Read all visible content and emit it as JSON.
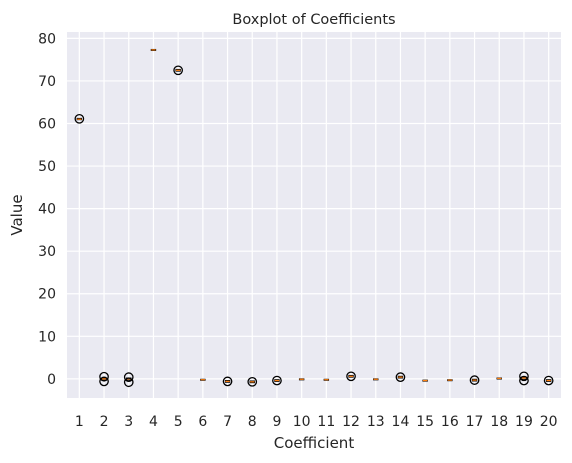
{
  "chart_data": {
    "type": "boxplot",
    "title": "Boxplot of Coefficients",
    "xlabel": "Coefficient",
    "ylabel": "Value",
    "grid": true,
    "ylim": [
      -4.5,
      81.5
    ],
    "yticks": [
      0,
      10,
      20,
      30,
      40,
      50,
      60,
      70,
      80
    ],
    "categories": [
      "1",
      "2",
      "3",
      "4",
      "5",
      "6",
      "7",
      "8",
      "9",
      "10",
      "11",
      "12",
      "13",
      "14",
      "15",
      "16",
      "17",
      "18",
      "19",
      "20"
    ],
    "series": [
      {
        "category": "1",
        "median": 61.0,
        "q1": 60.9,
        "q3": 61.2,
        "outliers": [
          61.1
        ]
      },
      {
        "category": "2",
        "median": 0.0,
        "q1": -0.3,
        "q3": 0.2,
        "outliers": [
          0.5,
          -0.6
        ]
      },
      {
        "category": "3",
        "median": 0.0,
        "q1": -0.3,
        "q3": 0.2,
        "outliers": [
          0.4,
          -0.8
        ]
      },
      {
        "category": "4",
        "median": 77.3,
        "q1": 77.2,
        "q3": 77.4,
        "outliers": []
      },
      {
        "category": "5",
        "median": 72.5,
        "q1": 72.3,
        "q3": 72.7,
        "outliers": [
          72.5
        ]
      },
      {
        "category": "6",
        "median": -0.2,
        "q1": -0.3,
        "q3": -0.1,
        "outliers": []
      },
      {
        "category": "7",
        "median": -0.6,
        "q1": -0.8,
        "q3": -0.4,
        "outliers": [
          -0.6
        ]
      },
      {
        "category": "8",
        "median": -0.7,
        "q1": -0.9,
        "q3": -0.5,
        "outliers": [
          -0.7
        ]
      },
      {
        "category": "9",
        "median": -0.4,
        "q1": -0.6,
        "q3": -0.2,
        "outliers": [
          -0.4
        ]
      },
      {
        "category": "10",
        "median": -0.1,
        "q1": -0.2,
        "q3": 0.0,
        "outliers": []
      },
      {
        "category": "11",
        "median": -0.2,
        "q1": -0.3,
        "q3": -0.1,
        "outliers": []
      },
      {
        "category": "12",
        "median": 0.6,
        "q1": 0.4,
        "q3": 0.8,
        "outliers": [
          0.6
        ]
      },
      {
        "category": "13",
        "median": -0.1,
        "q1": -0.2,
        "q3": 0.0,
        "outliers": []
      },
      {
        "category": "14",
        "median": 0.4,
        "q1": 0.2,
        "q3": 0.6,
        "outliers": [
          0.4
        ]
      },
      {
        "category": "15",
        "median": -0.4,
        "q1": -0.5,
        "q3": -0.3,
        "outliers": []
      },
      {
        "category": "16",
        "median": -0.3,
        "q1": -0.4,
        "q3": -0.2,
        "outliers": []
      },
      {
        "category": "17",
        "median": -0.3,
        "q1": -0.5,
        "q3": -0.1,
        "outliers": [
          -0.3
        ]
      },
      {
        "category": "18",
        "median": 0.1,
        "q1": 0.0,
        "q3": 0.2,
        "outliers": []
      },
      {
        "category": "19",
        "median": 0.2,
        "q1": -0.1,
        "q3": 0.4,
        "outliers": [
          0.6,
          -0.4
        ]
      },
      {
        "category": "20",
        "median": -0.4,
        "q1": -0.6,
        "q3": -0.2,
        "outliers": [
          -0.4
        ]
      }
    ],
    "colors": {
      "plot_background": "#eaeaf2",
      "grid": "#ffffff",
      "text": "#262626",
      "box": "#000000",
      "median": "#ff7f0e",
      "outlier": "#000000"
    }
  }
}
